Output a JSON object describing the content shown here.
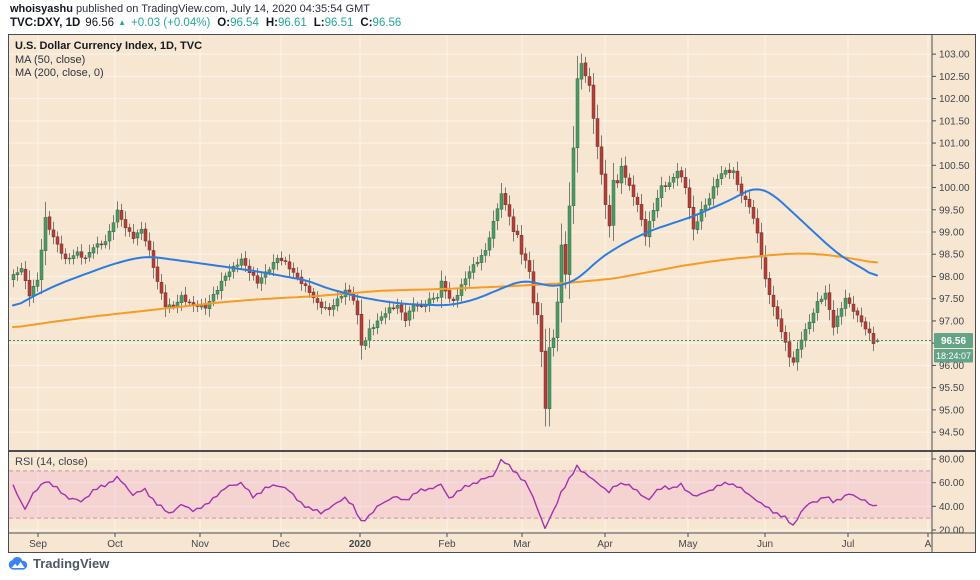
{
  "header": {
    "line1": {
      "username": "whoisyashu",
      "rest": " published on TradingView.com, July 14, 2020 04:35:54 GMT"
    },
    "line2": {
      "symbol": "TVC:DXY, 1D",
      "last": "96.56",
      "arrow": "▲",
      "change": "+0.03 (+0.04%)",
      "o_label": "O:",
      "o": "96.54",
      "h_label": "H:",
      "h": "96.61",
      "l_label": "L:",
      "l": "96.51",
      "c_label": "C:",
      "c": "96.56"
    }
  },
  "legend": {
    "title": "U.S. Dollar Currency Index, 1D, TVC",
    "ma50": "MA (50, close)",
    "ma200": "MA (200, close, 0)"
  },
  "rsi_panel": {
    "label": "RSI (14, close)"
  },
  "price_scale": {
    "ticks": [
      "103.00",
      "102.50",
      "102.00",
      "101.50",
      "101.00",
      "100.50",
      "100.00",
      "99.50",
      "99.00",
      "98.50",
      "98.00",
      "97.50",
      "97.00",
      "96.50",
      "96.00",
      "95.50",
      "95.00",
      "94.50"
    ],
    "last_label": "96.56",
    "countdown": "18:24:07"
  },
  "rsi_scale": {
    "ticks": [
      "80.00",
      "60.00",
      "40.00",
      "20.00"
    ],
    "tick_values": [
      80,
      60,
      40,
      20
    ]
  },
  "time_scale": {
    "labels": [
      {
        "text": "Sep",
        "d": 6.25
      },
      {
        "text": "Oct",
        "d": 25.5
      },
      {
        "text": "Nov",
        "d": 46.75
      },
      {
        "text": "Dec",
        "d": 67
      },
      {
        "text": "2020",
        "d": 86.75,
        "bold": true
      },
      {
        "text": "Feb",
        "d": 108.5
      },
      {
        "text": "Mar",
        "d": 127.25
      },
      {
        "text": "Apr",
        "d": 148
      },
      {
        "text": "May",
        "d": 168.75
      },
      {
        "text": "Jun",
        "d": 188
      },
      {
        "text": "Jul",
        "d": 208.75
      },
      {
        "text": "A",
        "d": 228.75
      }
    ]
  },
  "footer": {
    "brand": "TradingView"
  },
  "colors": {
    "chart_bg": "#f7e7d2",
    "grid": "rgba(255,255,255,0.55)",
    "frame": "#4a4c52",
    "axis_text": "#43464d",
    "up": "#4f9a63",
    "up_border": "#2e6b44",
    "down": "#b2403a",
    "down_border": "#7e2b27",
    "wick": "#7c7a76",
    "ma50": "#2c7ce0",
    "ma200": "#f79b26",
    "rsi": "#a531ad",
    "rsi_band": "rgba(229,106,208,0.16)",
    "rsi_band_edge": "rgba(164,88,150,0.55)",
    "price_line": "#3f8a5f",
    "price_label_bg": "#63a388",
    "price_label_text": "#ffffff",
    "header_up": "#26a69a",
    "logo_blue": "#3b82f6"
  },
  "chart_data": [
    {
      "type": "candlestick",
      "title": "U.S. Dollar Currency Index, 1D, TVC",
      "symbol": "TVC:DXY",
      "interval": "1D",
      "n_bars": 217,
      "y_axis": {
        "min": 94.2,
        "max": 103.45,
        "tick_step": 0.5,
        "tick_min": 94.5,
        "tick_max": 103.0
      },
      "x_axis": {
        "unit": "trading days, ~Aug 2019 → Jul 14 2020",
        "months_ref": "time_scale.labels"
      },
      "last_bar": {
        "open": 96.54,
        "high": 96.61,
        "low": 96.51,
        "close": 96.56
      },
      "current_price": 96.56,
      "countdown": "18:24:07",
      "close_anchors": [
        [
          0,
          98.0
        ],
        [
          2,
          98.2
        ],
        [
          4,
          97.6
        ],
        [
          6,
          97.9
        ],
        [
          8,
          99.3
        ],
        [
          10,
          98.9
        ],
        [
          13,
          98.35
        ],
        [
          16,
          98.55
        ],
        [
          18,
          98.4
        ],
        [
          20,
          98.65
        ],
        [
          23,
          98.8
        ],
        [
          26,
          99.45
        ],
        [
          28,
          99.1
        ],
        [
          30,
          98.9
        ],
        [
          32,
          99.05
        ],
        [
          34,
          98.55
        ],
        [
          36,
          97.9
        ],
        [
          38,
          97.35
        ],
        [
          40,
          97.3
        ],
        [
          42,
          97.55
        ],
        [
          45,
          97.35
        ],
        [
          48,
          97.3
        ],
        [
          50,
          97.6
        ],
        [
          53,
          98.0
        ],
        [
          55,
          98.2
        ],
        [
          57,
          98.4
        ],
        [
          59,
          98.1
        ],
        [
          61,
          97.85
        ],
        [
          63,
          98.1
        ],
        [
          66,
          98.4
        ],
        [
          68,
          98.3
        ],
        [
          70,
          98.1
        ],
        [
          73,
          97.75
        ],
        [
          76,
          97.4
        ],
        [
          79,
          97.25
        ],
        [
          81,
          97.45
        ],
        [
          83,
          97.7
        ],
        [
          85,
          97.5
        ],
        [
          86,
          97.1
        ],
        [
          87,
          96.45
        ],
        [
          88,
          96.55
        ],
        [
          89,
          96.8
        ],
        [
          92,
          97.1
        ],
        [
          94,
          97.25
        ],
        [
          96,
          97.35
        ],
        [
          98,
          97.05
        ],
        [
          100,
          97.35
        ],
        [
          102,
          97.3
        ],
        [
          104,
          97.5
        ],
        [
          106,
          97.55
        ],
        [
          107,
          97.85
        ],
        [
          109,
          97.5
        ],
        [
          110,
          97.45
        ],
        [
          112,
          97.8
        ],
        [
          114,
          98.1
        ],
        [
          116,
          98.35
        ],
        [
          118,
          98.6
        ],
        [
          120,
          99.2
        ],
        [
          122,
          99.85
        ],
        [
          123,
          99.6
        ],
        [
          124,
          99.4
        ],
        [
          125,
          99.0
        ],
        [
          126,
          98.95
        ],
        [
          127,
          98.5
        ],
        [
          129,
          98.13
        ],
        [
          130,
          97.4
        ],
        [
          131,
          97.15
        ],
        [
          132,
          96.35
        ],
        [
          133,
          95.0
        ],
        [
          134,
          96.4
        ],
        [
          135,
          96.6
        ],
        [
          136,
          97.4
        ],
        [
          137,
          98.75
        ],
        [
          138,
          98.05
        ],
        [
          139,
          99.6
        ],
        [
          140,
          100.9
        ],
        [
          141,
          102.4
        ],
        [
          142,
          102.8
        ],
        [
          143,
          102.5
        ],
        [
          144,
          102.3
        ],
        [
          145,
          101.6
        ],
        [
          146,
          100.9
        ],
        [
          147,
          100.3
        ],
        [
          148,
          99.6
        ],
        [
          149,
          99.1
        ],
        [
          150,
          100.2
        ],
        [
          151,
          100.1
        ],
        [
          152,
          100.5
        ],
        [
          154,
          100.0
        ],
        [
          156,
          99.6
        ],
        [
          158,
          98.95
        ],
        [
          160,
          99.5
        ],
        [
          162,
          100.0
        ],
        [
          164,
          100.1
        ],
        [
          166,
          100.4
        ],
        [
          168,
          100.0
        ],
        [
          170,
          99.05
        ],
        [
          172,
          99.5
        ],
        [
          174,
          99.75
        ],
        [
          176,
          100.2
        ],
        [
          178,
          100.4
        ],
        [
          180,
          100.35
        ],
        [
          182,
          99.8
        ],
        [
          184,
          99.6
        ],
        [
          186,
          99.0
        ],
        [
          188,
          97.9
        ],
        [
          190,
          97.3
        ],
        [
          192,
          96.8
        ],
        [
          194,
          96.2
        ],
        [
          195,
          96.05
        ],
        [
          197,
          96.6
        ],
        [
          199,
          97.0
        ],
        [
          201,
          97.4
        ],
        [
          203,
          97.6
        ],
        [
          205,
          96.9
        ],
        [
          207,
          97.3
        ],
        [
          208,
          97.5
        ],
        [
          209,
          97.35
        ],
        [
          212,
          97.0
        ],
        [
          214,
          96.7
        ],
        [
          215,
          96.5
        ],
        [
          216,
          96.56
        ]
      ],
      "overlays": [
        {
          "name": "MA (50, close)",
          "color": "#2c7ce0",
          "anchors": [
            [
              0,
              97.3
            ],
            [
              6,
              97.6
            ],
            [
              12,
              97.85
            ],
            [
              18,
              98.05
            ],
            [
              24,
              98.25
            ],
            [
              30,
              98.4
            ],
            [
              34,
              98.45
            ],
            [
              40,
              98.38
            ],
            [
              48,
              98.28
            ],
            [
              56,
              98.18
            ],
            [
              62,
              98.1
            ],
            [
              68,
              98.0
            ],
            [
              74,
              97.9
            ],
            [
              78,
              97.75
            ],
            [
              82,
              97.65
            ],
            [
              86,
              97.55
            ],
            [
              92,
              97.45
            ],
            [
              98,
              97.38
            ],
            [
              104,
              97.36
            ],
            [
              108,
              97.35
            ],
            [
              112,
              97.4
            ],
            [
              116,
              97.5
            ],
            [
              120,
              97.65
            ],
            [
              124,
              97.8
            ],
            [
              127,
              97.9
            ],
            [
              130,
              97.88
            ],
            [
              133,
              97.8
            ],
            [
              136,
              97.78
            ],
            [
              139,
              97.85
            ],
            [
              142,
              98.0
            ],
            [
              146,
              98.35
            ],
            [
              150,
              98.6
            ],
            [
              155,
              98.85
            ],
            [
              160,
              99.05
            ],
            [
              165,
              99.2
            ],
            [
              170,
              99.35
            ],
            [
              175,
              99.55
            ],
            [
              179,
              99.7
            ],
            [
              183,
              99.9
            ],
            [
              186,
              100.0
            ],
            [
              190,
              99.85
            ],
            [
              193,
              99.6
            ],
            [
              196,
              99.35
            ],
            [
              199,
              99.1
            ],
            [
              202,
              98.85
            ],
            [
              205,
              98.6
            ],
            [
              208,
              98.4
            ],
            [
              211,
              98.25
            ],
            [
              214,
              98.1
            ],
            [
              216,
              97.95
            ]
          ]
        },
        {
          "name": "MA (200, close, 0)",
          "color": "#f79b26",
          "anchors": [
            [
              0,
              96.85
            ],
            [
              10,
              96.98
            ],
            [
              20,
              97.1
            ],
            [
              30,
              97.2
            ],
            [
              40,
              97.3
            ],
            [
              50,
              97.4
            ],
            [
              60,
              97.48
            ],
            [
              68,
              97.52
            ],
            [
              76,
              97.56
            ],
            [
              84,
              97.62
            ],
            [
              92,
              97.68
            ],
            [
              100,
              97.7
            ],
            [
              108,
              97.72
            ],
            [
              116,
              97.75
            ],
            [
              124,
              97.78
            ],
            [
              132,
              97.82
            ],
            [
              138,
              97.85
            ],
            [
              144,
              97.9
            ],
            [
              150,
              97.95
            ],
            [
              156,
              98.05
            ],
            [
              162,
              98.15
            ],
            [
              168,
              98.25
            ],
            [
              174,
              98.33
            ],
            [
              180,
              98.4
            ],
            [
              186,
              98.45
            ],
            [
              192,
              98.5
            ],
            [
              198,
              98.52
            ],
            [
              204,
              98.48
            ],
            [
              210,
              98.4
            ],
            [
              216,
              98.3
            ]
          ]
        }
      ]
    },
    {
      "type": "line",
      "name": "RSI (14, close)",
      "y_axis": {
        "ticks": [
          80,
          60,
          40,
          20
        ],
        "band": [
          30,
          70
        ],
        "range_shown": [
          17,
          85
        ]
      },
      "anchors": [
        [
          0,
          57
        ],
        [
          3,
          38
        ],
        [
          5,
          50
        ],
        [
          8,
          62
        ],
        [
          11,
          55
        ],
        [
          14,
          47
        ],
        [
          17,
          44
        ],
        [
          20,
          53
        ],
        [
          23,
          58
        ],
        [
          26,
          64
        ],
        [
          28,
          58
        ],
        [
          30,
          50
        ],
        [
          33,
          54
        ],
        [
          36,
          42
        ],
        [
          39,
          34
        ],
        [
          42,
          41
        ],
        [
          45,
          37
        ],
        [
          48,
          40
        ],
        [
          51,
          50
        ],
        [
          54,
          57
        ],
        [
          57,
          60
        ],
        [
          60,
          48
        ],
        [
          63,
          55
        ],
        [
          66,
          58
        ],
        [
          68,
          56
        ],
        [
          71,
          46
        ],
        [
          74,
          38
        ],
        [
          77,
          35
        ],
        [
          80,
          40
        ],
        [
          83,
          48
        ],
        [
          85,
          40
        ],
        [
          87,
          27
        ],
        [
          89,
          32
        ],
        [
          92,
          42
        ],
        [
          95,
          48
        ],
        [
          98,
          45
        ],
        [
          101,
          52
        ],
        [
          104,
          55
        ],
        [
          107,
          58
        ],
        [
          109,
          47
        ],
        [
          111,
          52
        ],
        [
          114,
          58
        ],
        [
          117,
          62
        ],
        [
          120,
          66
        ],
        [
          122,
          79
        ],
        [
          124,
          74
        ],
        [
          126,
          68
        ],
        [
          128,
          60
        ],
        [
          129,
          55
        ],
        [
          131,
          40
        ],
        [
          133,
          21
        ],
        [
          135,
          35
        ],
        [
          137,
          52
        ],
        [
          139,
          62
        ],
        [
          141,
          74
        ],
        [
          143,
          68
        ],
        [
          145,
          62
        ],
        [
          147,
          58
        ],
        [
          149,
          52
        ],
        [
          151,
          58
        ],
        [
          153,
          60
        ],
        [
          155,
          55
        ],
        [
          157,
          50
        ],
        [
          159,
          46
        ],
        [
          161,
          53
        ],
        [
          163,
          57
        ],
        [
          165,
          55
        ],
        [
          167,
          58
        ],
        [
          169,
          52
        ],
        [
          171,
          48
        ],
        [
          173,
          52
        ],
        [
          175,
          55
        ],
        [
          177,
          58
        ],
        [
          179,
          60
        ],
        [
          181,
          57
        ],
        [
          183,
          52
        ],
        [
          185,
          48
        ],
        [
          187,
          42
        ],
        [
          189,
          38
        ],
        [
          191,
          34
        ],
        [
          193,
          30
        ],
        [
          195,
          24
        ],
        [
          197,
          35
        ],
        [
          199,
          42
        ],
        [
          201,
          45
        ],
        [
          203,
          48
        ],
        [
          205,
          44
        ],
        [
          207,
          47
        ],
        [
          209,
          50
        ],
        [
          211,
          48
        ],
        [
          213,
          45
        ],
        [
          215,
          39
        ],
        [
          216,
          42
        ]
      ]
    }
  ]
}
